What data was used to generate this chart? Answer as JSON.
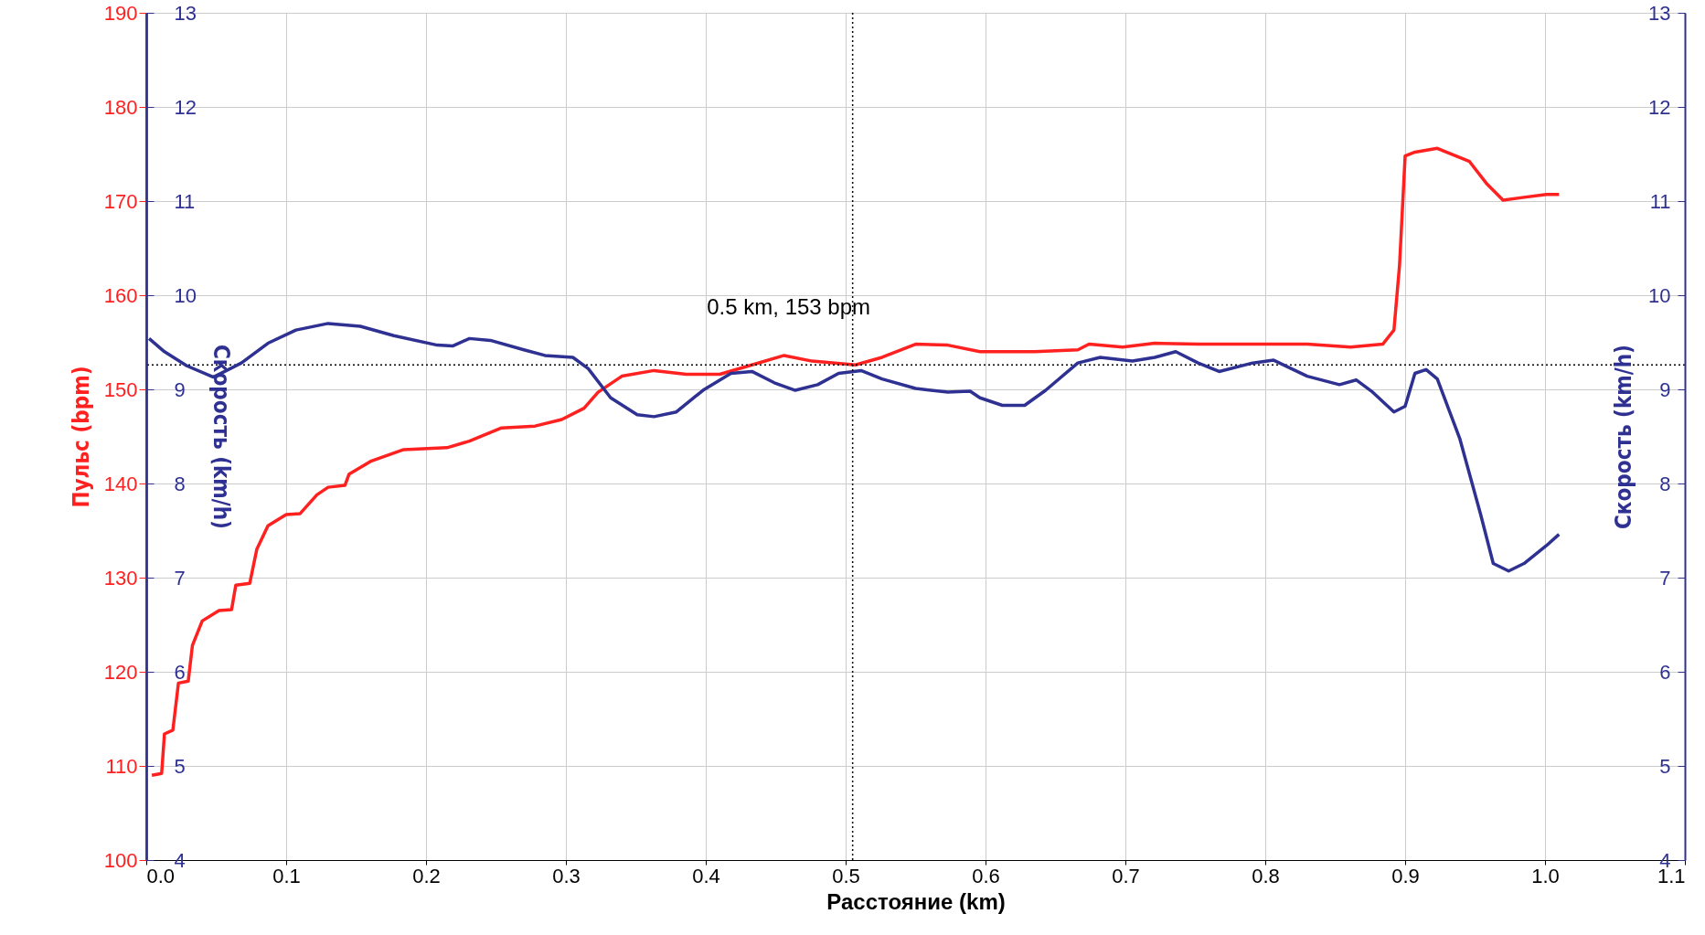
{
  "chart_data": {
    "type": "line",
    "xlabel": "Расстояние (km)",
    "ylabel": "Пульс (bpm)",
    "y2label": "Скорость (km/h)",
    "y3label": "Скорость (km/h)",
    "xlim": [
      0,
      1.1
    ],
    "xticks": [
      {
        "value": 0,
        "label": "0.0"
      },
      0.1,
      0.2,
      0.3,
      0.4,
      0.5,
      0.6,
      0.7,
      0.8,
      0.9,
      {
        "value": 1,
        "label": "1.0"
      },
      1.1
    ],
    "ylim": [
      100,
      190
    ],
    "yticks": [
      100,
      110,
      120,
      130,
      140,
      150,
      160,
      170,
      180,
      190
    ],
    "y2lim": [
      4,
      13
    ],
    "y2ticks": [
      4,
      5,
      6,
      7,
      8,
      9,
      10,
      11,
      12,
      13
    ],
    "y3lim": [
      4,
      13
    ],
    "y3ticks": [
      4,
      5,
      6,
      7,
      8,
      9,
      10,
      11,
      12,
      13
    ],
    "grid": true,
    "line_style": "solid",
    "ref_lines": [
      {
        "axis": "x",
        "value": 0.505,
        "line_style": "dotted",
        "color": "#000000"
      },
      {
        "axis": "y",
        "value": 152.6,
        "line_style": "dotted",
        "color": "#000000"
      }
    ],
    "annotations": [
      {
        "text": "0.5 km, 153 bpm",
        "x": 0.505,
        "y": 152.6
      }
    ],
    "series": [
      {
        "color": "#ff2020",
        "x": [
          0.004,
          0.011,
          0.013,
          0.019,
          0.023,
          0.03,
          0.033,
          0.04,
          0.052,
          0.061,
          0.064,
          0.074,
          0.079,
          0.087,
          0.1,
          0.11,
          0.122,
          0.13,
          0.142,
          0.145,
          0.161,
          0.184,
          0.215,
          0.231,
          0.254,
          0.278,
          0.297,
          0.313,
          0.323,
          0.34,
          0.363,
          0.386,
          0.41,
          0.433,
          0.456,
          0.476,
          0.507,
          0.526,
          0.55,
          0.573,
          0.596,
          0.635,
          0.666,
          0.674,
          0.698,
          0.721,
          0.752,
          0.83,
          0.861,
          0.884,
          0.892,
          0.896,
          0.9,
          0.907,
          0.923,
          0.946,
          0.958,
          0.97,
          0.985,
          1.001,
          1.01
        ],
        "values": [
          109,
          109.2,
          113.4,
          113.8,
          118.8,
          119,
          122.8,
          125.4,
          126.5,
          126.6,
          129.2,
          129.4,
          133,
          135.5,
          136.7,
          136.8,
          138.8,
          139.6,
          139.8,
          141,
          142.4,
          143.6,
          143.8,
          144.5,
          145.9,
          146.1,
          146.8,
          148,
          149.7,
          151.4,
          152,
          151.6,
          151.6,
          152.6,
          153.6,
          153,
          152.6,
          153.4,
          154.8,
          154.7,
          154,
          154,
          154.2,
          154.8,
          154.5,
          154.9,
          154.8,
          154.8,
          154.5,
          154.8,
          156.3,
          163.2,
          174.8,
          175.2,
          175.6,
          174.2,
          171.9,
          170.1,
          170.4,
          170.7,
          170.7
        ]
      },
      {
        "color": "#2e3192",
        "axis": "y2",
        "x": [
          0.002,
          0.013,
          0.029,
          0.048,
          0.068,
          0.087,
          0.107,
          0.13,
          0.153,
          0.177,
          0.208,
          0.219,
          0.231,
          0.246,
          0.27,
          0.285,
          0.305,
          0.316,
          0.332,
          0.351,
          0.363,
          0.379,
          0.398,
          0.418,
          0.433,
          0.449,
          0.464,
          0.48,
          0.495,
          0.511,
          0.526,
          0.55,
          0.573,
          0.589,
          0.596,
          0.612,
          0.628,
          0.643,
          0.666,
          0.682,
          0.705,
          0.721,
          0.736,
          0.752,
          0.767,
          0.791,
          0.806,
          0.83,
          0.853,
          0.865,
          0.876,
          0.892,
          0.9,
          0.907,
          0.915,
          0.923,
          0.939,
          0.954,
          0.963,
          0.974,
          0.985,
          1.001,
          1.01
        ],
        "values": [
          9.54,
          9.4,
          9.25,
          9.13,
          9.28,
          9.49,
          9.63,
          9.7,
          9.67,
          9.57,
          9.47,
          9.46,
          9.54,
          9.52,
          9.42,
          9.36,
          9.34,
          9.22,
          8.91,
          8.73,
          8.71,
          8.76,
          8.99,
          9.17,
          9.19,
          9.07,
          8.99,
          9.05,
          9.17,
          9.2,
          9.11,
          9.01,
          8.97,
          8.98,
          8.91,
          8.83,
          8.83,
          8.99,
          9.28,
          9.34,
          9.3,
          9.34,
          9.4,
          9.28,
          9.19,
          9.28,
          9.31,
          9.14,
          9.05,
          9.1,
          8.98,
          8.76,
          8.82,
          9.17,
          9.21,
          9.11,
          8.48,
          7.67,
          7.15,
          7.07,
          7.15,
          7.34,
          7.46
        ]
      }
    ]
  }
}
